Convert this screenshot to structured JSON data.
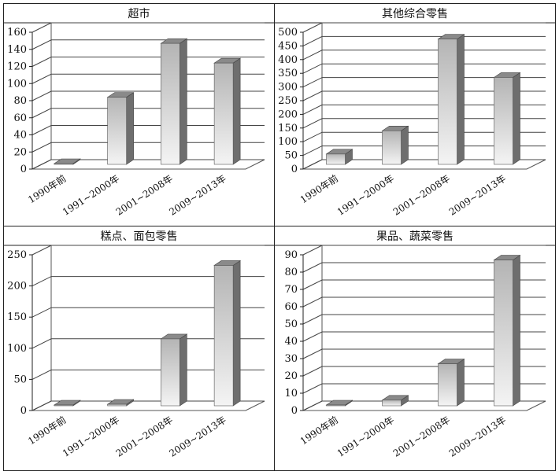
{
  "chart_data": [
    {
      "type": "bar",
      "title": "超市",
      "categories": [
        "1990年前",
        "1991~2000年",
        "2001~2008年",
        "2009~2013年"
      ],
      "values": [
        0,
        84,
        147,
        124
      ],
      "ylim": [
        0,
        160
      ],
      "yticks": [
        0,
        20,
        40,
        60,
        80,
        100,
        120,
        140,
        160
      ],
      "grid": true,
      "style": "3d-column"
    },
    {
      "type": "bar",
      "title": "其他综合零售",
      "categories": [
        "1990年前",
        "1991~2000年",
        "2001~2008年",
        "2009~2013年"
      ],
      "values": [
        55,
        140,
        475,
        335
      ],
      "ylim": [
        0,
        500
      ],
      "yticks": [
        0,
        50,
        100,
        150,
        200,
        250,
        300,
        350,
        400,
        450,
        500
      ],
      "grid": true,
      "style": "3d-column"
    },
    {
      "type": "bar",
      "title": "糕点、面包零售",
      "categories": [
        "1990年前",
        "1991~2000年",
        "2001~2008年",
        "2009~2013年"
      ],
      "values": [
        2,
        10,
        115,
        233
      ],
      "ylim": [
        0,
        250
      ],
      "yticks": [
        0,
        50,
        100,
        150,
        200,
        250
      ],
      "grid": true,
      "style": "3d-column"
    },
    {
      "type": "bar",
      "title": "果品、蔬菜零售",
      "categories": [
        "1990年前",
        "1991~2000年",
        "2001~2008年",
        "2009~2013年"
      ],
      "values": [
        1,
        6,
        27,
        87
      ],
      "ylim": [
        0,
        90
      ],
      "yticks": [
        0,
        10,
        20,
        30,
        40,
        50,
        60,
        70,
        80,
        90
      ],
      "grid": true,
      "style": "3d-column"
    }
  ]
}
